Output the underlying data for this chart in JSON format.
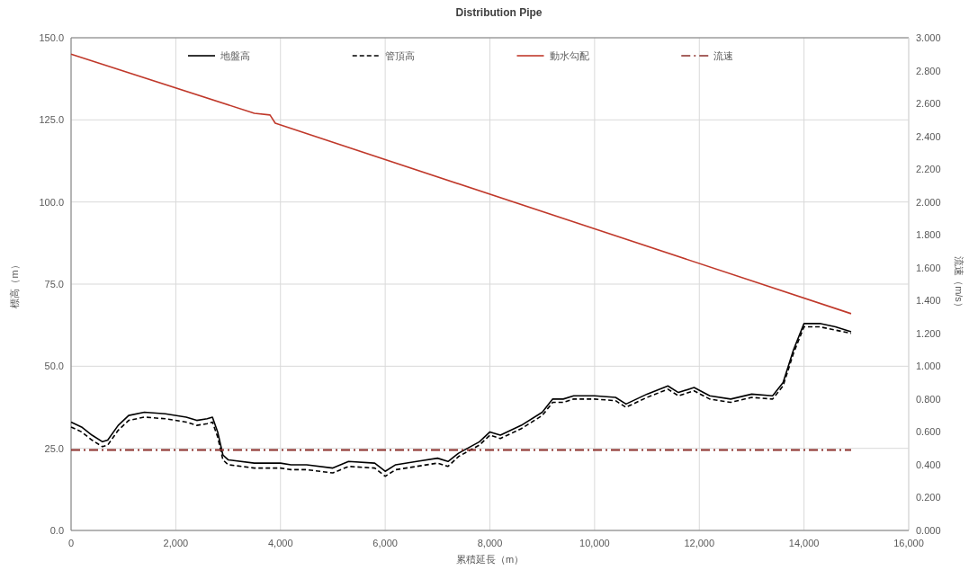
{
  "chart_data": {
    "type": "line",
    "title": "Distribution Pipe",
    "xlabel": "累積延長（m）",
    "ylabel": "標高（m）",
    "y2label": "流速（m/s）",
    "xlim": [
      0,
      16000
    ],
    "ylim": [
      0,
      150
    ],
    "y2lim": [
      0,
      3
    ],
    "xticks": [
      {
        "value": 0,
        "label": "0"
      },
      {
        "value": 2000,
        "label": "2,000"
      },
      {
        "value": 4000,
        "label": "4,000"
      },
      {
        "value": 6000,
        "label": "6,000"
      },
      {
        "value": 8000,
        "label": "8,000"
      },
      {
        "value": 10000,
        "label": "10,000"
      },
      {
        "value": 12000,
        "label": "12,000"
      },
      {
        "value": 14000,
        "label": "14,000"
      },
      {
        "value": 16000,
        "label": "16,000"
      }
    ],
    "yticks": [
      {
        "value": 0,
        "label": "0.0"
      },
      {
        "value": 25,
        "label": "25.0"
      },
      {
        "value": 50,
        "label": "50.0"
      },
      {
        "value": 75,
        "label": "75.0"
      },
      {
        "value": 100,
        "label": "100.0"
      },
      {
        "value": 125,
        "label": "125.0"
      },
      {
        "value": 150,
        "label": "150.0"
      }
    ],
    "y2ticks": [
      {
        "value": 0,
        "label": "0.000"
      },
      {
        "value": 0.2,
        "label": "0.200"
      },
      {
        "value": 0.4,
        "label": "0.400"
      },
      {
        "value": 0.6,
        "label": "0.600"
      },
      {
        "value": 0.8,
        "label": "0.800"
      },
      {
        "value": 1,
        "label": "1.000"
      },
      {
        "value": 1.2,
        "label": "1.200"
      },
      {
        "value": 1.4,
        "label": "1.400"
      },
      {
        "value": 1.6,
        "label": "1.600"
      },
      {
        "value": 1.8,
        "label": "1.800"
      },
      {
        "value": 2,
        "label": "2.000"
      },
      {
        "value": 2.2,
        "label": "2.200"
      },
      {
        "value": 2.4,
        "label": "2.400"
      },
      {
        "value": 2.6,
        "label": "2.600"
      },
      {
        "value": 2.8,
        "label": "2.800"
      },
      {
        "value": 3,
        "label": "3.000"
      }
    ],
    "grid": true,
    "legend": "top",
    "marker": "none",
    "series": [
      {
        "name": "地盤高",
        "color": "#000000",
        "line_style": "solid",
        "x": [
          0,
          200,
          400,
          600,
          700,
          900,
          1100,
          1400,
          1800,
          2200,
          2400,
          2600,
          2700,
          2800,
          2900,
          3000,
          3500,
          4000,
          4200,
          4500,
          5000,
          5300,
          5800,
          6000,
          6200,
          6600,
          7000,
          7200,
          7400,
          7800,
          8000,
          8200,
          8600,
          9000,
          9200,
          9400,
          9600,
          10000,
          10400,
          10600,
          10800,
          11000,
          11400,
          11600,
          11900,
          12200,
          12600,
          13000,
          13400,
          13600,
          13800,
          14000,
          14300,
          14600,
          14900
        ],
        "values": [
          33,
          31.5,
          29,
          27,
          27.5,
          32,
          35,
          36,
          35.5,
          34.5,
          33.5,
          34,
          34.5,
          30,
          23,
          21.5,
          20.5,
          20.5,
          20,
          20,
          19,
          21,
          20.5,
          18,
          20,
          21,
          22,
          21,
          23.5,
          27,
          30,
          29,
          32,
          36,
          40,
          40,
          41,
          41,
          40.5,
          38.5,
          40,
          41.5,
          44,
          42,
          43.5,
          41,
          40,
          41.5,
          41,
          45,
          55,
          63,
          63,
          62,
          60.5
        ]
      },
      {
        "name": "管頂高",
        "color": "#000000",
        "line_style": "dashed",
        "x": [
          0,
          200,
          400,
          600,
          700,
          900,
          1100,
          1400,
          1800,
          2200,
          2400,
          2600,
          2700,
          2800,
          2900,
          3000,
          3500,
          4000,
          4200,
          4500,
          5000,
          5300,
          5800,
          6000,
          6200,
          6600,
          7000,
          7200,
          7400,
          7800,
          8000,
          8200,
          8600,
          9000,
          9200,
          9400,
          9600,
          10000,
          10400,
          10600,
          10800,
          11000,
          11400,
          11600,
          11900,
          12200,
          12600,
          13000,
          13400,
          13600,
          13800,
          14000,
          14300,
          14600,
          14900
        ],
        "values": [
          31.5,
          30,
          27.5,
          25.5,
          26,
          30.5,
          33.5,
          34.5,
          34,
          33,
          32,
          32.5,
          33,
          28.5,
          21.5,
          20,
          19,
          19,
          18.5,
          18.5,
          17.5,
          19.5,
          19,
          16.5,
          18.5,
          19.5,
          20.5,
          19.5,
          22.5,
          26,
          29,
          28,
          31,
          35,
          39,
          39,
          40,
          40,
          39.5,
          37.5,
          39,
          40.5,
          43,
          41,
          42.5,
          40,
          39,
          40.5,
          40,
          44,
          54,
          62,
          62,
          61,
          60
        ]
      },
      {
        "name": "動水勾配",
        "color": "#c0392b",
        "line_style": "solid",
        "x": [
          0,
          3500,
          3800,
          3900,
          14900
        ],
        "values": [
          145,
          127,
          126.5,
          124,
          66
        ]
      },
      {
        "name": "流速",
        "color": "#8b2e2a",
        "line_style": "dashdot",
        "axis": "y2",
        "x": [
          0,
          14900
        ],
        "values": [
          0.49,
          0.49
        ]
      }
    ]
  }
}
